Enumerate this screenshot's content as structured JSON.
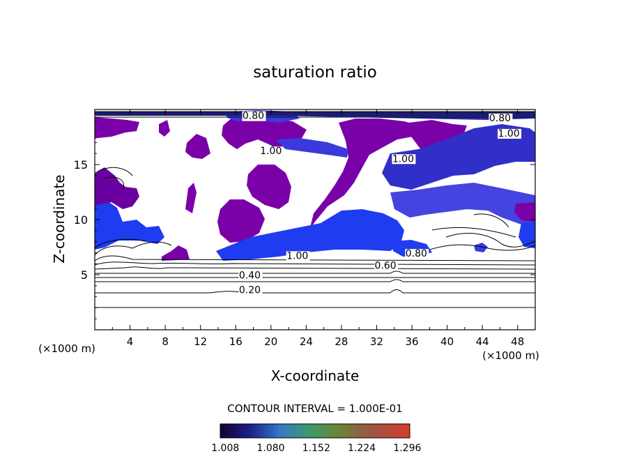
{
  "chart_data": {
    "type": "contour",
    "title": "saturation ratio",
    "xlabel": "X-coordinate",
    "ylabel": "Z-coordinate",
    "x_unit": "(×1000 m)",
    "y_unit": "(×1000 m)",
    "xlim": [
      0,
      50
    ],
    "ylim": [
      0,
      20
    ],
    "x_ticks": [
      "4",
      "8",
      "12",
      "16",
      "20",
      "24",
      "28",
      "32",
      "36",
      "40",
      "44",
      "48"
    ],
    "y_ticks": [
      "5",
      "10",
      "15"
    ],
    "contour_interval_text": "CONTOUR INTERVAL = 1.000E-01",
    "contour_labels": [
      {
        "text": "0.20",
        "x": 17.6,
        "z": 3.4
      },
      {
        "text": "0.40",
        "x": 17.6,
        "z": 4.7
      },
      {
        "text": "0.60",
        "x": 33.0,
        "z": 5.6
      },
      {
        "text": "0.80",
        "x": 36.5,
        "z": 6.7
      },
      {
        "text": "1.00",
        "x": 23.0,
        "z": 6.5
      },
      {
        "text": "1.00",
        "x": 20.0,
        "z": 16.0
      },
      {
        "text": "1.00",
        "x": 35.0,
        "z": 15.3
      },
      {
        "text": "1.00",
        "x": 47.0,
        "z": 17.6
      },
      {
        "text": "0.80",
        "x": 18.0,
        "z": 19.2
      },
      {
        "text": "0.80",
        "x": 46.0,
        "z": 19.0
      }
    ],
    "level_lines_z": [
      2.0,
      3.3,
      4.4,
      4.8,
      5.1,
      5.4,
      5.7,
      6.0
    ],
    "colorbar": {
      "ticks": [
        "1.008",
        "1.080",
        "1.152",
        "1.224",
        "1.296"
      ],
      "range": [
        1.0,
        1.3
      ]
    },
    "colors": {
      "supersaturated": "#7a00a8",
      "blue_patch": "#1f3cf0",
      "dark_blue": "#1a1e9c"
    }
  }
}
